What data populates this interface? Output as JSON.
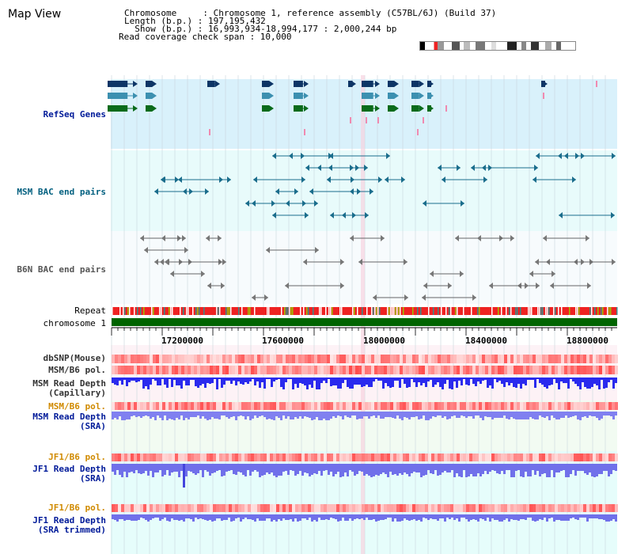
{
  "header": {
    "title": "Map View",
    "info_lines": [
      "Chromosome     : Chromosome 1, reference assembly (C57BL/6J) (Build 37)",
      "Length (b.p.) : 197,195,432",
      "  Show (b.p.) : 16,993,934-18,994,177 : 2,000,244 bp",
      "Read coverage check span : 10,000"
    ]
  },
  "tracks": {
    "refseq_label": "RefSeq Genes",
    "msm_bac_label": "MSM BAC end pairs",
    "b6n_bac_label": "B6N BAC end pairs",
    "repeat_label": "Repeat",
    "chromosome_label": "chromosome 1",
    "dbsnp_label": "dbSNP(Mouse)",
    "msm_b6_pol_label": "MSM/B6 pol.",
    "msm_read_depth_cap_label_1": "MSM Read Depth",
    "msm_read_depth_cap_label_2": "(Capillary)",
    "msm_b6_pol2_label": "MSM/B6 pol.",
    "msm_read_depth_sra_label_1": "MSM Read Depth",
    "msm_read_depth_sra_label_2": "(SRA)",
    "jf1_pol_label": "JF1/B6 pol.",
    "jf1_depth_sra_label_1": "JF1 Read Depth",
    "jf1_depth_sra_label_2": "(SRA)",
    "jf1_pol2_label": "JF1/B6 pol.",
    "jf1_depth_trim_label_1": "JF1 Read Depth",
    "jf1_depth_trim_label_2": "(SRA trimmed)"
  },
  "ruler": {
    "ticks": [
      "17200000",
      "17600000",
      "18000000",
      "18400000",
      "18800000"
    ]
  },
  "colors": {
    "refseq_bg": "#d9f1fb",
    "bac_bg": "#e8fbfb",
    "b6n_bg": "#f7fbfd",
    "depth_bg": "#f2fbf2",
    "jf1_bg": "#e6fdfb",
    "refseq_dark": "#0d3566",
    "refseq_mid": "#3c90b0",
    "refseq_green": "#0a6b1b",
    "bac_line": "#1a6d8c",
    "b6n_line": "#666666",
    "chrom_green": "#006400",
    "msm_label_color": "#005f7f",
    "pol_label_color": "#d08a00",
    "depth_label_color": "#001a99",
    "depth_bar": "#2222dd",
    "sra_bar": "#7777ee"
  }
}
